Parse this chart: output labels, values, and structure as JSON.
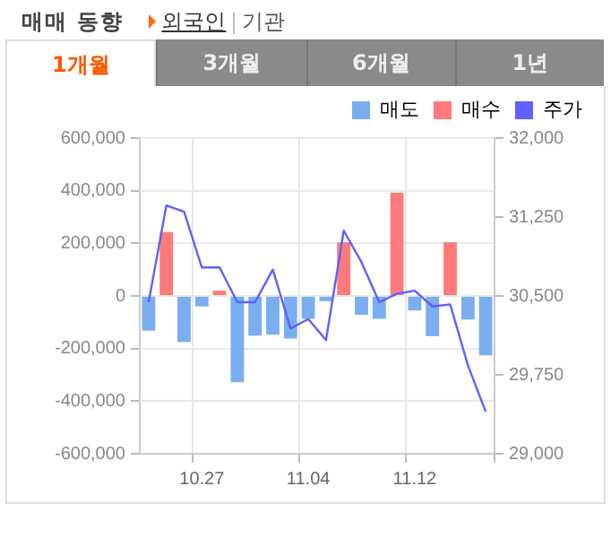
{
  "chart_data": {
    "type": "bar",
    "title": "매매 동향",
    "annotations": [
      "외국인",
      "기관",
      "1개월",
      "3개월",
      "6개월",
      "1년"
    ],
    "categories": [
      null,
      null,
      null,
      "10.27",
      null,
      null,
      null,
      null,
      null,
      "11.04",
      null,
      null,
      null,
      null,
      null,
      "11.12",
      null,
      null,
      null,
      null
    ],
    "stacked": true,
    "legend": "top right",
    "grid": true,
    "series": [
      {
        "name": "매도",
        "color": "#7aaef0",
        "values": [
          -132000,
          0,
          -175000,
          -40000,
          0,
          -328000,
          -151000,
          -147000,
          -162000,
          -87000,
          -20000,
          0,
          -72000,
          -87000,
          0,
          -55000,
          -153000,
          0,
          -90000,
          -226000
        ]
      },
      {
        "name": "매수",
        "color": "#ff7a7a",
        "values": [
          0,
          243000,
          0,
          0,
          20000,
          0,
          0,
          0,
          0,
          0,
          0,
          204000,
          0,
          0,
          392000,
          0,
          0,
          204000,
          0,
          0
        ]
      },
      {
        "name": "주가",
        "type": "line",
        "axis": "y2",
        "color": "#6060ff",
        "values": [
          30440,
          31360,
          31300,
          30770,
          30770,
          30440,
          30440,
          30750,
          30190,
          30280,
          30080,
          31120,
          30820,
          30440,
          30520,
          30550,
          30400,
          30420,
          29840,
          29400
        ]
      }
    ],
    "ylim": [
      -600000,
      600000
    ],
    "yticks": [
      {
        "value": -600000,
        "label": "-600,000"
      },
      {
        "value": -400000,
        "label": "-400,000"
      },
      {
        "value": -200000,
        "label": "-200,000"
      },
      0,
      {
        "value": 200000,
        "label": "200,000"
      },
      {
        "value": 400000,
        "label": "400,000"
      },
      {
        "value": 600000,
        "label": "600,000"
      }
    ],
    "y2lim": [
      29000,
      32000
    ],
    "y2ticks": [
      {
        "value": 29000,
        "label": "29,000"
      },
      {
        "value": 29750,
        "label": "29,750"
      },
      {
        "value": 30500,
        "label": "30,500"
      },
      {
        "value": 31250,
        "label": "31,250"
      },
      {
        "value": 32000,
        "label": "32,000"
      }
    ]
  }
}
